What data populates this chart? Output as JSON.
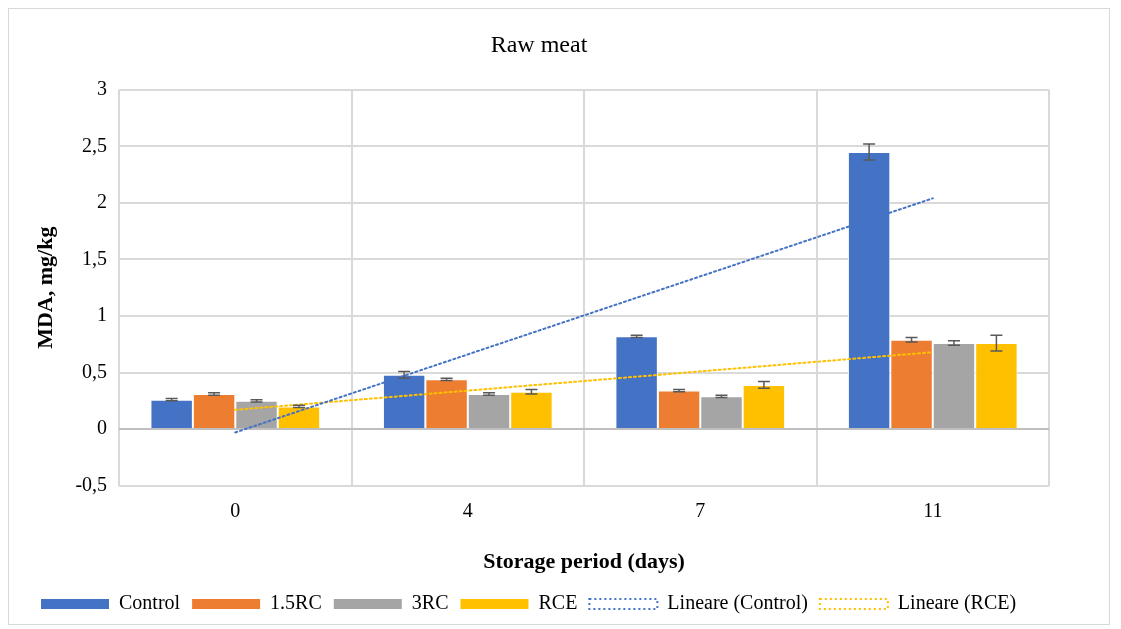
{
  "chart_data": {
    "type": "bar",
    "title": "Raw meat",
    "xlabel": "Storage period (days)",
    "ylabel": "MDA, mg/kg",
    "categories": [
      "0",
      "4",
      "7",
      "11"
    ],
    "series": [
      {
        "name": "Control",
        "color": "#4472c4",
        "values": [
          0.26,
          0.48,
          0.82,
          2.45
        ],
        "errors": [
          0.01,
          0.03,
          0.01,
          0.07
        ]
      },
      {
        "name": "1.5RC",
        "color": "#ed7d31",
        "values": [
          0.31,
          0.44,
          0.34,
          0.79
        ],
        "errors": [
          0.01,
          0.01,
          0.01,
          0.02
        ]
      },
      {
        "name": "3RC",
        "color": "#a5a5a5",
        "values": [
          0.25,
          0.31,
          0.29,
          0.76
        ],
        "errors": [
          0.01,
          0.01,
          0.01,
          0.02
        ]
      },
      {
        "name": "RCE",
        "color": "#ffc000",
        "values": [
          0.2,
          0.33,
          0.39,
          0.76
        ],
        "errors": [
          0.01,
          0.02,
          0.03,
          0.07
        ]
      },
      {
        "name": "Lineare (Control)",
        "type": "line",
        "line_style": "dotted",
        "color": "#4472c4",
        "values": [
          -0.03,
          null,
          null,
          2.04
        ]
      },
      {
        "name": "Lineare (RCE)",
        "type": "line",
        "line_style": "dotted",
        "color": "#ffc000",
        "values": [
          0.17,
          null,
          null,
          0.68
        ]
      }
    ],
    "ylim": [
      -0.5,
      3
    ],
    "yticks": [
      {
        "value": -0.5,
        "label": "-0,5"
      },
      0,
      {
        "value": 0.5,
        "label": "0,5"
      },
      1,
      {
        "value": 1.5,
        "label": "1,5"
      },
      2,
      {
        "value": 2.5,
        "label": "2,5"
      },
      3
    ],
    "grid": true,
    "legend": "bottom",
    "marker": "none"
  }
}
